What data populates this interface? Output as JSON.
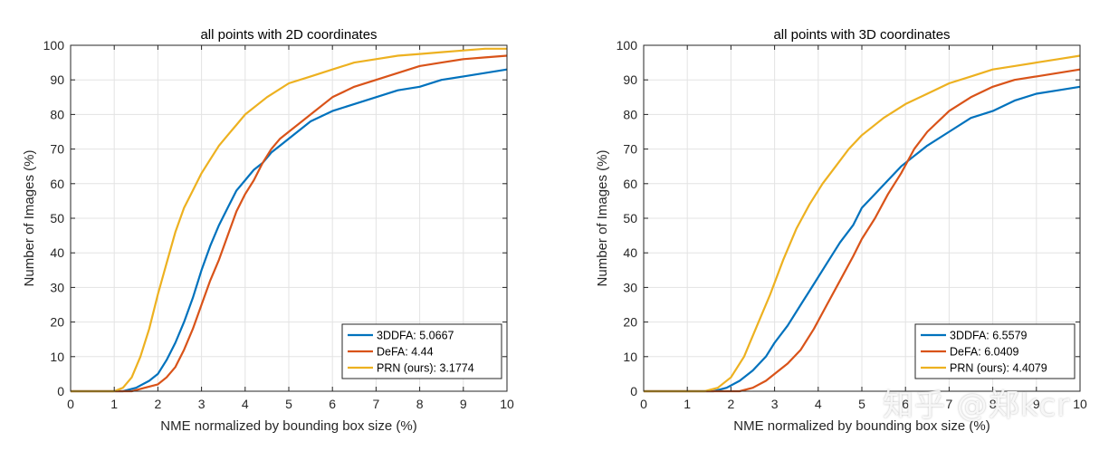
{
  "chart_data": [
    {
      "type": "line",
      "title": "all points with 2D coordinates",
      "xlabel": "NME normalized by bounding box size (%)",
      "ylabel": "Number of Images (%)",
      "xlim": [
        0,
        10
      ],
      "ylim": [
        0,
        100
      ],
      "xticks": [
        "0",
        "1",
        "2",
        "3",
        "4",
        "5",
        "6",
        "7",
        "8",
        "9",
        "10"
      ],
      "yticks": [
        "0",
        "10",
        "20",
        "30",
        "40",
        "50",
        "60",
        "70",
        "80",
        "90",
        "100"
      ],
      "grid": true,
      "legend_position": "bottom-right",
      "series": [
        {
          "name": "3DDFA: 5.0667",
          "color": "#0072BD",
          "x": [
            0,
            1.2,
            1.5,
            1.8,
            2.0,
            2.2,
            2.4,
            2.6,
            2.8,
            3.0,
            3.2,
            3.4,
            3.6,
            3.8,
            4.0,
            4.2,
            4.4,
            4.6,
            4.8,
            5.0,
            5.5,
            6.0,
            6.5,
            7.0,
            7.5,
            8.0,
            8.5,
            9.0,
            9.5,
            10.0
          ],
          "y": [
            0,
            0,
            1,
            3,
            5,
            9,
            14,
            20,
            27,
            35,
            42,
            48,
            53,
            58,
            61,
            64,
            66,
            69,
            71,
            73,
            78,
            81,
            83,
            85,
            87,
            88,
            90,
            91,
            92,
            93
          ]
        },
        {
          "name": "DeFA: 4.44",
          "color": "#D95319",
          "x": [
            0,
            1.4,
            1.7,
            2.0,
            2.2,
            2.4,
            2.6,
            2.8,
            3.0,
            3.2,
            3.4,
            3.6,
            3.8,
            4.0,
            4.2,
            4.4,
            4.6,
            4.8,
            5.0,
            5.5,
            6.0,
            6.5,
            7.0,
            7.5,
            8.0,
            8.5,
            9.0,
            9.5,
            10.0
          ],
          "y": [
            0,
            0,
            1,
            2,
            4,
            7,
            12,
            18,
            25,
            32,
            38,
            45,
            52,
            57,
            61,
            66,
            70,
            73,
            75,
            80,
            85,
            88,
            90,
            92,
            94,
            95,
            96,
            96.5,
            97
          ]
        },
        {
          "name": "PRN (ours): 3.1774",
          "color": "#EDB120",
          "x": [
            0,
            1.0,
            1.2,
            1.4,
            1.6,
            1.8,
            2.0,
            2.2,
            2.4,
            2.6,
            2.8,
            3.0,
            3.2,
            3.4,
            3.6,
            3.8,
            4.0,
            4.5,
            5.0,
            5.5,
            6.0,
            6.5,
            7.0,
            7.5,
            8.0,
            8.5,
            9.0,
            9.5,
            10.0
          ],
          "y": [
            0,
            0,
            1,
            4,
            10,
            18,
            28,
            37,
            46,
            53,
            58,
            63,
            67,
            71,
            74,
            77,
            80,
            85,
            89,
            91,
            93,
            95,
            96,
            97,
            97.5,
            98,
            98.5,
            99,
            99
          ]
        }
      ]
    },
    {
      "type": "line",
      "title": "all points with 3D coordinates",
      "xlabel": "NME normalized by bounding box size (%)",
      "ylabel": "Number of Images (%)",
      "xlim": [
        0,
        10
      ],
      "ylim": [
        0,
        100
      ],
      "xticks": [
        "0",
        "1",
        "2",
        "3",
        "4",
        "5",
        "6",
        "7",
        "8",
        "9",
        "10"
      ],
      "yticks": [
        "0",
        "10",
        "20",
        "30",
        "40",
        "50",
        "60",
        "70",
        "80",
        "90",
        "100"
      ],
      "grid": true,
      "legend_position": "bottom-right",
      "series": [
        {
          "name": "3DDFA: 6.5579",
          "color": "#0072BD",
          "x": [
            0,
            1.6,
            1.9,
            2.2,
            2.5,
            2.8,
            3.0,
            3.3,
            3.6,
            3.9,
            4.2,
            4.5,
            4.8,
            5.0,
            5.3,
            5.6,
            5.9,
            6.2,
            6.5,
            7.0,
            7.5,
            8.0,
            8.5,
            9.0,
            9.5,
            10.0
          ],
          "y": [
            0,
            0,
            1,
            3,
            6,
            10,
            14,
            19,
            25,
            31,
            37,
            43,
            48,
            53,
            57,
            61,
            65,
            68,
            71,
            75,
            79,
            81,
            84,
            86,
            87,
            88
          ]
        },
        {
          "name": "DeFA: 6.0409",
          "color": "#D95319",
          "x": [
            0,
            2.2,
            2.5,
            2.8,
            3.0,
            3.3,
            3.6,
            3.9,
            4.2,
            4.5,
            4.8,
            5.0,
            5.3,
            5.6,
            5.9,
            6.2,
            6.5,
            7.0,
            7.5,
            8.0,
            8.5,
            9.0,
            9.5,
            10.0
          ],
          "y": [
            0,
            0,
            1,
            3,
            5,
            8,
            12,
            18,
            25,
            32,
            39,
            44,
            50,
            57,
            63,
            70,
            75,
            81,
            85,
            88,
            90,
            91,
            92,
            93
          ]
        },
        {
          "name": "PRN (ours): 4.4079",
          "color": "#EDB120",
          "x": [
            0,
            1.4,
            1.7,
            2.0,
            2.3,
            2.6,
            2.9,
            3.2,
            3.5,
            3.8,
            4.1,
            4.4,
            4.7,
            5.0,
            5.5,
            6.0,
            6.5,
            7.0,
            7.5,
            8.0,
            8.5,
            9.0,
            9.5,
            10.0
          ],
          "y": [
            0,
            0,
            1,
            4,
            10,
            19,
            28,
            38,
            47,
            54,
            60,
            65,
            70,
            74,
            79,
            83,
            86,
            89,
            91,
            93,
            94,
            95,
            96,
            97
          ]
        }
      ]
    }
  ],
  "watermark": "知乎 @郑kcr"
}
